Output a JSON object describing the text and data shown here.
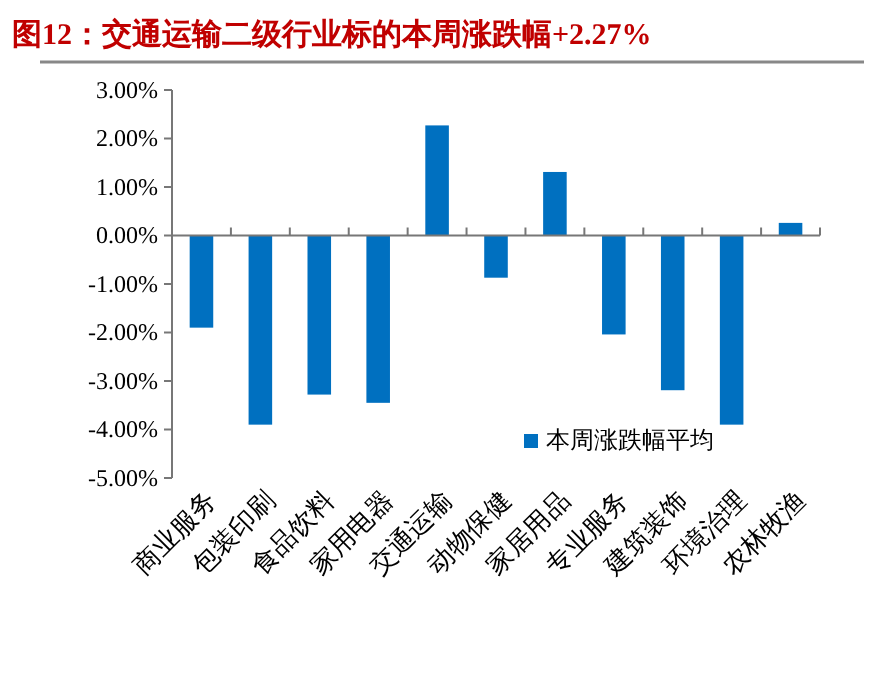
{
  "chart_data": {
    "type": "bar",
    "title": "图12：交通运输二级行业标的本周涨跌幅+2.27%",
    "categories": [
      "商业服务",
      "包装印刷",
      "食品饮料",
      "家用电器",
      "交通运输",
      "动物保健",
      "家居用品",
      "专业服务",
      "建筑装饰",
      "环境治理",
      "农林牧渔"
    ],
    "series": [
      {
        "name": "本周涨跌幅平均",
        "color": "#0070c0",
        "values": [
          -1.9,
          -3.9,
          -3.28,
          -3.45,
          2.27,
          -0.87,
          1.31,
          -2.04,
          -3.19,
          -3.9,
          0.26
        ]
      }
    ],
    "ylim": [
      -5,
      3
    ],
    "yticks": [
      {
        "value": 3,
        "label": "3.00%"
      },
      {
        "value": 2,
        "label": "2.00%"
      },
      {
        "value": 1,
        "label": "1.00%"
      },
      {
        "value": 0,
        "label": "0.00%"
      },
      {
        "value": -1,
        "label": "-1.00%"
      },
      {
        "value": -2,
        "label": "-2.00%"
      },
      {
        "value": -3,
        "label": "-3.00%"
      },
      {
        "value": -4,
        "label": "-4.00%"
      },
      {
        "value": -5,
        "label": "-5.00%"
      }
    ],
    "legend": "bottom right"
  }
}
